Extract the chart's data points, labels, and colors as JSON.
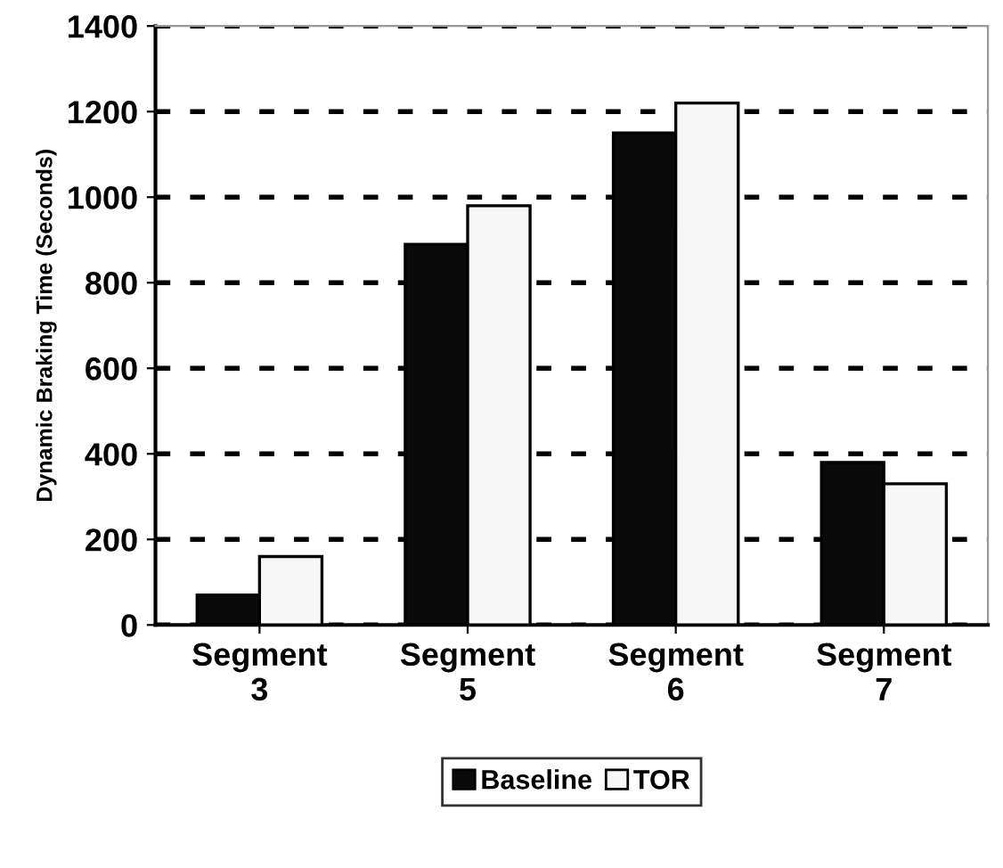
{
  "chart_data": {
    "type": "bar",
    "ylabel": "Dynamic Braking Time (Seconds)",
    "categories": [
      "Segment\n3",
      "Segment\n5",
      "Segment\n6",
      "Segment\n7"
    ],
    "series": [
      {
        "name": "Baseline",
        "color": "#0a0a0a",
        "values": [
          70,
          890,
          1150,
          380
        ]
      },
      {
        "name": "TOR",
        "color": "#f7f7f7",
        "values": [
          160,
          980,
          1220,
          330
        ]
      }
    ],
    "ylim": [
      0,
      1400
    ],
    "yticks": [
      0,
      200,
      400,
      600,
      800,
      1000,
      1200,
      1400
    ],
    "grid": "y",
    "legend": "bottom"
  }
}
